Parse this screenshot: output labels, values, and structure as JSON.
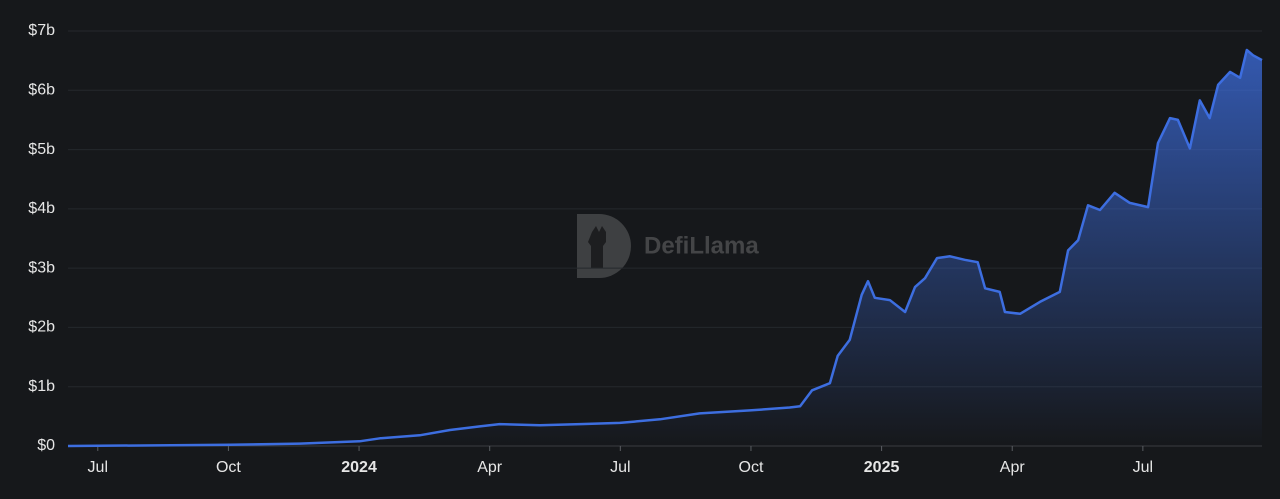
{
  "chart_data": {
    "type": "area",
    "watermark": "DefiLlama",
    "x": [
      2023.443,
      2023.753,
      2023.887,
      2024.001,
      2024.04,
      2024.116,
      2024.174,
      2024.231,
      2024.269,
      2024.346,
      2024.423,
      2024.499,
      2024.576,
      2024.652,
      2024.748,
      2024.824,
      2024.844,
      2024.867,
      2024.901,
      2024.916,
      2024.939,
      2024.962,
      2024.974,
      2024.987,
      2025.016,
      2025.045,
      2025.064,
      2025.083,
      2025.106,
      2025.131,
      2025.159,
      2025.184,
      2025.198,
      2025.226,
      2025.236,
      2025.265,
      2025.303,
      2025.341,
      2025.357,
      2025.376,
      2025.395,
      2025.418,
      2025.446,
      2025.475,
      2025.51,
      2025.529,
      2025.552,
      2025.567,
      2025.59,
      2025.609,
      2025.628,
      2025.644,
      2025.667,
      2025.686,
      2025.699,
      2025.711,
      2025.728
    ],
    "values": [
      0,
      0.02,
      0.04,
      0.08,
      0.13,
      0.18,
      0.27,
      0.33,
      0.37,
      0.35,
      0.37,
      0.39,
      0.45,
      0.55,
      0.6,
      0.65,
      0.67,
      0.94,
      1.06,
      1.52,
      1.79,
      2.55,
      2.78,
      2.5,
      2.46,
      2.26,
      2.68,
      2.83,
      3.17,
      3.2,
      3.14,
      3.1,
      2.66,
      2.6,
      2.26,
      2.23,
      2.43,
      2.6,
      3.3,
      3.47,
      4.06,
      3.98,
      4.27,
      4.1,
      4.03,
      5.11,
      5.53,
      5.5,
      5.02,
      5.83,
      5.53,
      6.09,
      6.31,
      6.21,
      6.68,
      6.59,
      6.51
    ],
    "color": "#3d6ee0",
    "xlim": [
      2023.443,
      2025.728
    ],
    "ylim": [
      0,
      7
    ],
    "xticks": [
      {
        "value": 2023.5,
        "label": "Jul"
      },
      {
        "value": 2023.75,
        "label": "Oct"
      },
      2024,
      {
        "value": 2024.25,
        "label": "Apr"
      },
      {
        "value": 2024.5,
        "label": "Jul"
      },
      {
        "value": 2024.75,
        "label": "Oct"
      },
      2025,
      {
        "value": 2025.25,
        "label": "Apr"
      },
      {
        "value": 2025.5,
        "label": "Jul"
      }
    ],
    "yticks": [
      {
        "value": 0,
        "label": "$0"
      },
      {
        "value": 1,
        "label": "$1b"
      },
      {
        "value": 2,
        "label": "$2b"
      },
      {
        "value": 3,
        "label": "$3b"
      },
      {
        "value": 4,
        "label": "$4b"
      },
      {
        "value": 5,
        "label": "$5b"
      },
      {
        "value": 6,
        "label": "$6b"
      },
      {
        "value": 7,
        "label": "$7b"
      }
    ],
    "grid": true
  }
}
